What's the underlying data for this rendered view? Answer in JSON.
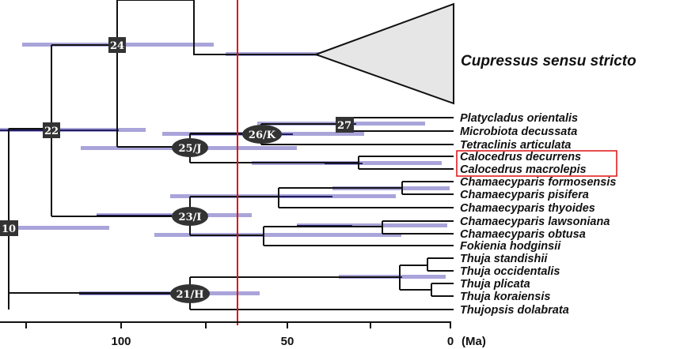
{
  "taxa": {
    "cupressus": "Cupressus sensu stricto",
    "platycladus": "Platycladus orientalis",
    "microbiota": "Microbiota decussata",
    "tetraclinis": "Tetraclinis articulata",
    "calocedrus_dec": "Calocedrus decurrens",
    "calocedrus_mac": "Calocedrus macrolepis",
    "cham_form": "Chamaecyparis formosensis",
    "cham_pisi": "Chamaecyparis pisifera",
    "cham_thyo": "Chamaecyparis thyoides",
    "cham_laws": "Chamaecyparis lawsoniana",
    "cham_obtu": "Chamaecyparis obtusa",
    "fokienia": "Fokienia hodginsii",
    "thuja_stan": "Thuja standishii",
    "thuja_occi": "Thuja occidentalis",
    "thuja_plic": "Thuja plicata",
    "thuja_kora": "Thuja koraiensis",
    "thujopsis": "Thujopsis dolabrata"
  },
  "nodes": {
    "n24": "24",
    "n22": "22",
    "n10": "10",
    "n27": "27",
    "n26K": "26/K",
    "n25J": "25/J",
    "n23I": "23/I",
    "n21H": "21/H"
  },
  "axis": {
    "ticks": [
      "100",
      "50",
      "0"
    ],
    "unit": "(Ma)"
  },
  "colors": {
    "branch": "#111111",
    "hpd_bar": "#8c86cc",
    "hpd_core": "#1e1b5e",
    "marker_line": "#e01010",
    "highlight_box": "#e01010",
    "node_box": "#333333"
  }
}
